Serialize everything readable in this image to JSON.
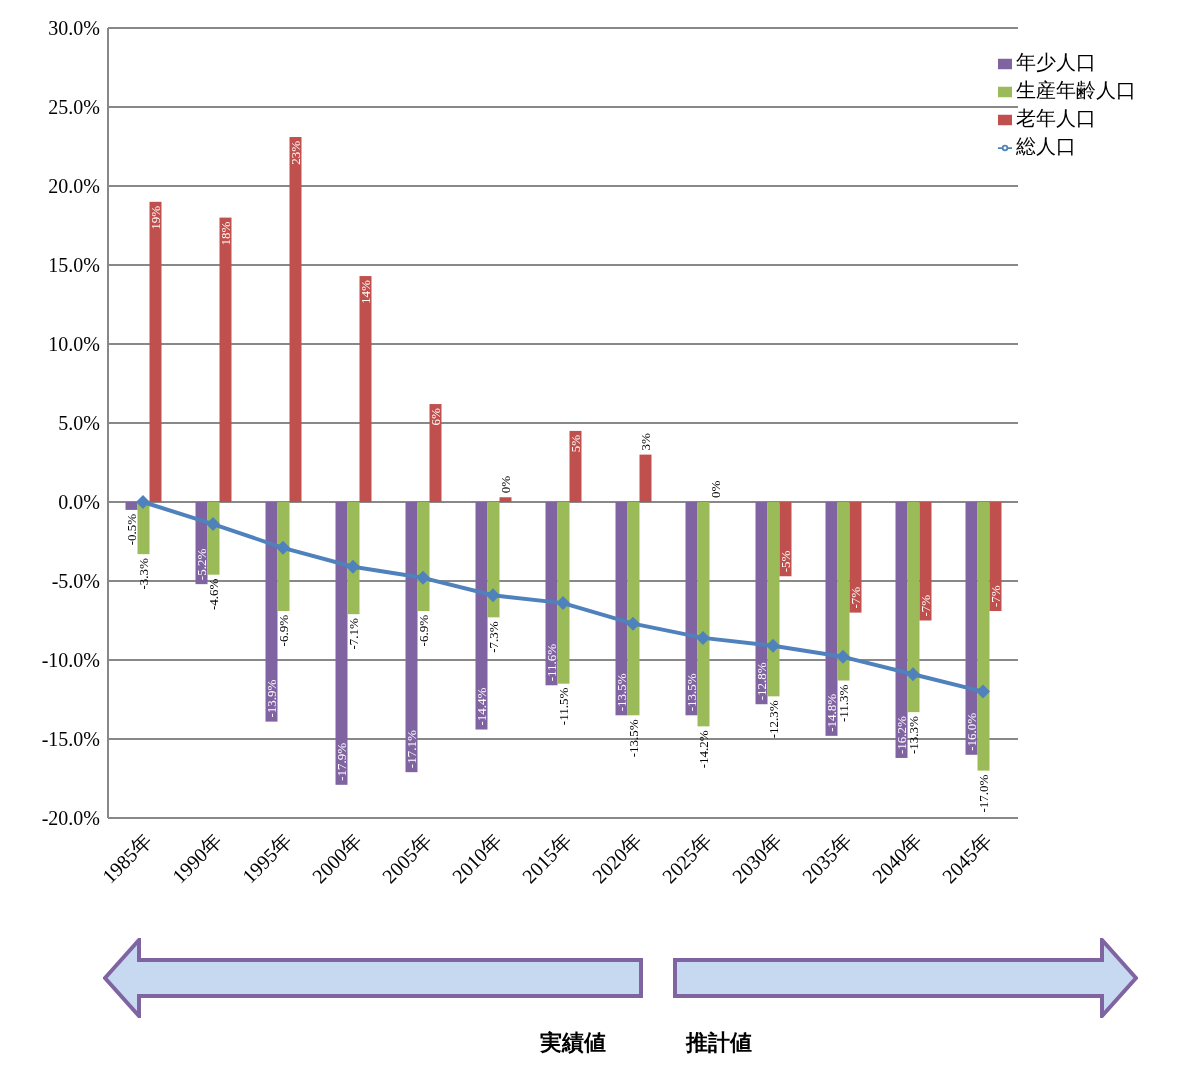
{
  "chart_data": {
    "type": "bar",
    "categories": [
      "1985年",
      "1990年",
      "1995年",
      "2000年",
      "2005年",
      "2010年",
      "2015年",
      "2020年",
      "2025年",
      "2030年",
      "2035年",
      "2040年",
      "2045年"
    ],
    "series": [
      {
        "name": "年少人口",
        "color": "#8064a2",
        "values": [
          -0.5,
          -5.2,
          -13.9,
          -17.9,
          -17.1,
          -14.4,
          -11.6,
          -13.5,
          -13.5,
          -12.8,
          -14.8,
          -16.2,
          -16.0
        ],
        "value_labels": [
          "-0.5%",
          "-5.2%",
          "-13.9%",
          "-17.9%",
          "-17.1%",
          "-14.4%",
          "-11.6%",
          "-13.5%",
          "-13.5%",
          "-12.8%",
          "-14.8%",
          "-16.2%",
          "-16.0%"
        ]
      },
      {
        "name": "生産年齢人口",
        "color": "#9bbb59",
        "values": [
          -3.3,
          -4.6,
          -6.9,
          -7.1,
          -6.9,
          -7.3,
          -11.5,
          -13.5,
          -14.2,
          -12.3,
          -11.3,
          -13.3,
          -17.0
        ],
        "value_labels": [
          "-3.3%",
          "-4.6%",
          "-6.9%",
          "-7.1%",
          "-6.9%",
          "-7.3%",
          "-11.5%",
          "-13.5%",
          "-14.2%",
          "-12.3%",
          "-11.3%",
          "-13.3%",
          "-17.0%"
        ]
      },
      {
        "name": "老年人口",
        "color": "#c0504d",
        "values": [
          19.0,
          18.0,
          23.1,
          14.3,
          6.2,
          0.3,
          4.5,
          3.0,
          0.0,
          -4.7,
          -7.0,
          -7.5,
          -6.9
        ],
        "value_labels": [
          "19%",
          "18%",
          "23%",
          "14%",
          "6%",
          "0%",
          "5%",
          "3%",
          "0%",
          "-5%",
          "-7%",
          "-7%",
          "-7%"
        ]
      },
      {
        "name": "総人口",
        "type": "line",
        "color": "#4f81bd",
        "marker": "diamond",
        "values": [
          0.0,
          -1.4,
          -2.9,
          -4.1,
          -4.8,
          -5.9,
          -6.4,
          -7.7,
          -8.6,
          -9.1,
          -9.8,
          -10.9,
          -12.0
        ]
      }
    ],
    "ylim": [
      -20,
      30
    ],
    "yticks": [
      {
        "value": -20,
        "label": "-20.0%"
      },
      {
        "value": -15,
        "label": "-15.0%"
      },
      {
        "value": -10,
        "label": "-10.0%"
      },
      {
        "value": -5,
        "label": "-5.0%"
      },
      {
        "value": 0,
        "label": "0.0%"
      },
      {
        "value": 5,
        "label": "5.0%"
      },
      {
        "value": 10,
        "label": "10.0%"
      },
      {
        "value": 15,
        "label": "15.0%"
      },
      {
        "value": 20,
        "label": "20.0%"
      },
      {
        "value": 25,
        "label": "25.0%"
      },
      {
        "value": 30,
        "label": "30.0%"
      }
    ],
    "grid": "y",
    "legend": "top right",
    "annotations": [
      "実績値",
      "推計値"
    ]
  }
}
